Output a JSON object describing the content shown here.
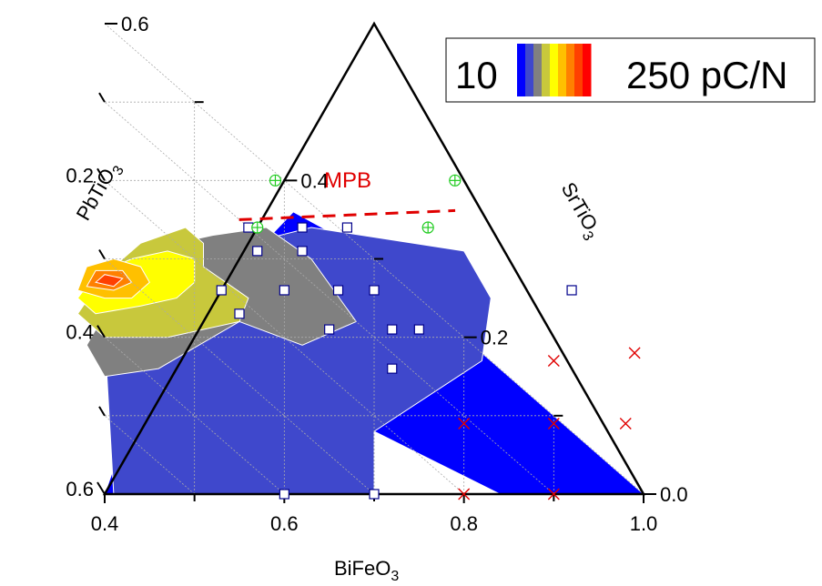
{
  "chart_data": {
    "type": "ternary-contour",
    "axes": {
      "bottom": {
        "label": "BiFeO",
        "subscript": "3",
        "ticks": [
          "0.4",
          "0.6",
          "0.8",
          "1.0"
        ]
      },
      "left": {
        "label": "PbTiO",
        "subscript": "3",
        "ticks": [
          "0.2",
          "0.4",
          "0.6"
        ]
      },
      "right": {
        "label": "SrTiO",
        "subscript": "3",
        "ticks": [
          "0.6",
          "0.4",
          "0.2",
          "0.0"
        ]
      }
    },
    "legend": {
      "min_label": "10",
      "max_label": "250 pC/N",
      "colors": [
        "#0000ff",
        "#3f48cc",
        "#808080",
        "#c8c83c",
        "#ffff00",
        "#ffc000",
        "#ff8000",
        "#ff4000",
        "#ff0000"
      ]
    },
    "annotation": {
      "text": "MPB",
      "color": "#e00000",
      "line": [
        {
          "bfo": 0.58,
          "sto": 0.35
        },
        {
          "bfo": 0.77,
          "sto": 0.35
        }
      ]
    },
    "contour_regions": [
      {
        "level": 10,
        "color": "#0000ff",
        "points": [
          [
            0.7,
            0.08
          ],
          [
            0.84,
            0.0
          ],
          [
            1.0,
            0.0
          ],
          [
            0.69,
            0.31
          ],
          [
            0.61,
            0.36
          ],
          [
            0.56,
            0.3
          ],
          [
            0.46,
            0.2
          ],
          [
            0.4,
            0.0
          ],
          [
            0.45,
            0.0
          ],
          [
            0.46,
            0.2
          ],
          [
            0.56,
            0.3
          ]
        ]
      },
      {
        "level": 40,
        "color": "#3f48cc",
        "points": [
          [
            0.41,
            0.0
          ],
          [
            0.7,
            0.0
          ],
          [
            0.7,
            0.08
          ],
          [
            0.82,
            0.17
          ],
          [
            0.83,
            0.25
          ],
          [
            0.8,
            0.31
          ],
          [
            0.63,
            0.34
          ],
          [
            0.56,
            0.32
          ],
          [
            0.44,
            0.23
          ],
          [
            0.4,
            0.2
          ]
        ]
      },
      {
        "level": 70,
        "color": "#808080",
        "points": [
          [
            0.4,
            0.15
          ],
          [
            0.46,
            0.16
          ],
          [
            0.55,
            0.22
          ],
          [
            0.62,
            0.19
          ],
          [
            0.68,
            0.22
          ],
          [
            0.63,
            0.3
          ],
          [
            0.58,
            0.34
          ],
          [
            0.52,
            0.33
          ],
          [
            0.44,
            0.31
          ],
          [
            0.38,
            0.19
          ]
        ]
      },
      {
        "level": 110,
        "color": "#c8c83c",
        "points": [
          [
            0.4,
            0.2
          ],
          [
            0.47,
            0.2
          ],
          [
            0.55,
            0.22
          ],
          [
            0.56,
            0.25
          ],
          [
            0.51,
            0.29
          ],
          [
            0.51,
            0.32
          ],
          [
            0.49,
            0.34
          ],
          [
            0.44,
            0.32
          ],
          [
            0.4,
            0.28
          ],
          [
            0.37,
            0.23
          ]
        ]
      },
      {
        "level": 150,
        "color": "#ffff00",
        "points": [
          [
            0.39,
            0.23
          ],
          [
            0.44,
            0.24
          ],
          [
            0.48,
            0.25
          ],
          [
            0.5,
            0.27
          ],
          [
            0.5,
            0.3
          ],
          [
            0.47,
            0.31
          ],
          [
            0.43,
            0.3
          ],
          [
            0.39,
            0.28
          ],
          [
            0.37,
            0.25
          ]
        ]
      },
      {
        "level": 180,
        "color": "#ffc000",
        "points": [
          [
            0.37,
            0.26
          ],
          [
            0.4,
            0.25
          ],
          [
            0.43,
            0.25
          ],
          [
            0.45,
            0.27
          ],
          [
            0.44,
            0.29
          ],
          [
            0.41,
            0.3
          ],
          [
            0.38,
            0.29
          ]
        ]
      },
      {
        "level": 210,
        "color": "#ff8000",
        "points": [
          [
            0.38,
            0.265
          ],
          [
            0.41,
            0.26
          ],
          [
            0.43,
            0.27
          ],
          [
            0.42,
            0.285
          ],
          [
            0.39,
            0.285
          ]
        ]
      },
      {
        "level": 240,
        "color": "#ff4000",
        "points": [
          [
            0.39,
            0.27
          ],
          [
            0.41,
            0.265
          ],
          [
            0.42,
            0.275
          ],
          [
            0.4,
            0.28
          ]
        ]
      }
    ],
    "data_points": {
      "squares": [
        {
          "bfo": 0.6,
          "sto": 0.0
        },
        {
          "bfo": 0.7,
          "sto": 0.0
        },
        {
          "bfo": 0.53,
          "sto": 0.26
        },
        {
          "bfo": 0.55,
          "sto": 0.23
        },
        {
          "bfo": 0.6,
          "sto": 0.26
        },
        {
          "bfo": 0.65,
          "sto": 0.21
        },
        {
          "bfo": 0.57,
          "sto": 0.31
        },
        {
          "bfo": 0.62,
          "sto": 0.31
        },
        {
          "bfo": 0.66,
          "sto": 0.26
        },
        {
          "bfo": 0.7,
          "sto": 0.26
        },
        {
          "bfo": 0.72,
          "sto": 0.21
        },
        {
          "bfo": 0.75,
          "sto": 0.21
        },
        {
          "bfo": 0.56,
          "sto": 0.34
        },
        {
          "bfo": 0.62,
          "sto": 0.34
        },
        {
          "bfo": 0.67,
          "sto": 0.34
        },
        {
          "bfo": 0.72,
          "sto": 0.16
        },
        {
          "bfo": 0.92,
          "sto": 0.26
        }
      ],
      "circle_plus": [
        {
          "bfo": 0.59,
          "sto": 0.4
        },
        {
          "bfo": 0.79,
          "sto": 0.4
        },
        {
          "bfo": 0.57,
          "sto": 0.34
        },
        {
          "bfo": 0.76,
          "sto": 0.34
        }
      ],
      "crosses": [
        {
          "bfo": 0.9,
          "sto": 0.17
        },
        {
          "bfo": 0.8,
          "sto": 0.09
        },
        {
          "bfo": 0.9,
          "sto": 0.09
        },
        {
          "bfo": 0.98,
          "sto": 0.09
        },
        {
          "bfo": 0.8,
          "sto": 0.0
        },
        {
          "bfo": 0.9,
          "sto": 0.0
        },
        {
          "bfo": 0.99,
          "sto": 0.18
        }
      ]
    }
  }
}
